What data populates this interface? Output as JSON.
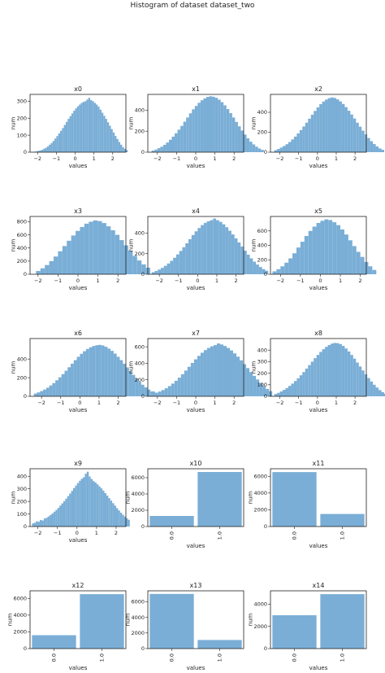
{
  "title": "Histogram of dataset dataset_two",
  "colors": {
    "bar": "#7aaed6",
    "axis": "#222222"
  },
  "chart_data": [
    {
      "type": "bar",
      "title": "x0",
      "xlabel": "values",
      "ylabel": "num",
      "xlim": [
        -2.4,
        2.7
      ],
      "ylim": [
        0,
        340
      ],
      "xticks": [
        -2,
        -1,
        0,
        1,
        2
      ],
      "yticks": [
        0,
        100,
        200,
        300
      ],
      "bins": {
        "start": -2.2,
        "width": 0.1,
        "values": [
          3,
          5,
          8,
          10,
          14,
          20,
          26,
          34,
          44,
          54,
          66,
          80,
          95,
          110,
          126,
          142,
          160,
          178,
          196,
          212,
          228,
          244,
          258,
          270,
          280,
          290,
          296,
          300,
          310,
          320,
          306,
          300,
          290,
          280,
          268,
          250,
          232,
          214,
          196,
          176,
          156,
          136,
          116,
          96,
          78,
          60,
          44,
          30,
          20,
          12
        ]
      }
    },
    {
      "type": "bar",
      "title": "x1",
      "xlabel": "values",
      "ylabel": "num",
      "xlim": [
        -2.5,
        2.5
      ],
      "ylim": [
        0,
        550
      ],
      "xticks": [
        -2,
        -1,
        0,
        1,
        2
      ],
      "yticks": [
        0,
        200,
        400
      ],
      "bins": {
        "start": -2.3,
        "width": 0.15,
        "values": [
          15,
          25,
          38,
          52,
          70,
          92,
          118,
          148,
          180,
          214,
          250,
          290,
          330,
          370,
          408,
          440,
          470,
          494,
          512,
          526,
          532,
          528,
          518,
          500,
          476,
          446,
          410,
          372,
          330,
          288,
          246,
          206,
          168,
          132,
          100,
          74,
          52,
          35,
          22
        ]
      }
    },
    {
      "type": "bar",
      "title": "x2",
      "xlabel": "values",
      "ylabel": "num",
      "xlim": [
        -2.5,
        2.6
      ],
      "ylim": [
        0,
        580
      ],
      "xticks": [
        -2,
        -1,
        0,
        1,
        2
      ],
      "yticks": [
        0,
        200,
        400
      ],
      "bins": {
        "start": -2.3,
        "width": 0.15,
        "values": [
          20,
          32,
          46,
          62,
          80,
          102,
          128,
          156,
          188,
          222,
          258,
          296,
          336,
          376,
          414,
          450,
          482,
          508,
          528,
          542,
          550,
          544,
          530,
          510,
          484,
          452,
          416,
          378,
          338,
          296,
          256,
          216,
          178,
          142,
          110,
          82,
          58,
          38,
          24
        ]
      }
    },
    {
      "type": "bar",
      "title": "x3",
      "xlabel": "values",
      "ylabel": "num",
      "xlim": [
        -2.4,
        2.4
      ],
      "ylim": [
        0,
        880
      ],
      "xticks": [
        -2,
        -1,
        0,
        1,
        2
      ],
      "yticks": [
        0,
        200,
        400,
        600,
        800
      ],
      "bins": {
        "start": -2.1,
        "width": 0.22,
        "values": [
          50,
          90,
          140,
          200,
          270,
          350,
          430,
          510,
          590,
          660,
          720,
          770,
          800,
          820,
          810,
          780,
          730,
          670,
          600,
          520,
          440,
          360,
          280,
          210,
          150,
          100
        ]
      }
    },
    {
      "type": "bar",
      "title": "x4",
      "xlabel": "values",
      "ylabel": "num",
      "xlim": [
        -2.6,
        2.4
      ],
      "ylim": [
        0,
        560
      ],
      "xticks": [
        -2,
        -1,
        0,
        1,
        2
      ],
      "yticks": [
        0,
        200,
        400
      ],
      "bins": {
        "start": -2.4,
        "width": 0.16,
        "values": [
          20,
          32,
          46,
          62,
          82,
          104,
          130,
          160,
          192,
          226,
          262,
          300,
          340,
          380,
          416,
          448,
          476,
          498,
          514,
          524,
          540,
          524,
          508,
          484,
          456,
          422,
          386,
          348,
          308,
          268,
          228,
          190,
          154,
          122,
          94,
          70,
          50,
          34
        ]
      }
    },
    {
      "type": "bar",
      "title": "x5",
      "xlabel": "values",
      "ylabel": "num",
      "xlim": [
        -2.5,
        2.3
      ],
      "ylim": [
        0,
        800
      ],
      "xticks": [
        -2,
        -1,
        0,
        1,
        2
      ],
      "yticks": [
        0,
        200,
        400,
        600
      ],
      "bins": {
        "start": -2.4,
        "width": 0.2,
        "values": [
          40,
          70,
          110,
          160,
          220,
          290,
          370,
          450,
          530,
          600,
          660,
          710,
          740,
          760,
          750,
          720,
          680,
          620,
          550,
          470,
          390,
          310,
          240,
          170,
          110,
          60
        ]
      }
    },
    {
      "type": "bar",
      "title": "x6",
      "xlabel": "values",
      "ylabel": "num",
      "xlim": [
        -2.6,
        2.4
      ],
      "ylim": [
        0,
        620
      ],
      "xticks": [
        -2,
        -1,
        0,
        1,
        2
      ],
      "yticks": [
        0,
        200,
        400
      ],
      "bins": {
        "start": -2.4,
        "width": 0.16,
        "values": [
          30,
          42,
          56,
          72,
          92,
          116,
          142,
          172,
          204,
          238,
          274,
          312,
          350,
          388,
          424,
          456,
          484,
          508,
          526,
          540,
          548,
          552,
          546,
          532,
          512,
          488,
          458,
          424,
          388,
          350,
          310,
          270,
          230,
          192,
          156,
          124,
          96,
          72,
          52,
          36
        ]
      }
    },
    {
      "type": "bar",
      "title": "x7",
      "xlabel": "values",
      "ylabel": "num",
      "xlim": [
        -2.5,
        2.5
      ],
      "ylim": [
        0,
        700
      ],
      "xticks": [
        -2,
        -1,
        0,
        1,
        2
      ],
      "yticks": [
        0,
        200,
        400,
        600
      ],
      "bins": {
        "start": -2.3,
        "width": 0.17,
        "values": [
          60,
          44,
          58,
          76,
          98,
          124,
          154,
          188,
          226,
          268,
          312,
          358,
          404,
          448,
          490,
          528,
          560,
          586,
          606,
          620,
          640,
          628,
          610,
          586,
          556,
          520,
          480,
          436,
          390,
          342,
          294,
          248,
          204,
          162,
          124,
          90,
          62
        ]
      }
    },
    {
      "type": "bar",
      "title": "x8",
      "xlabel": "values",
      "ylabel": "num",
      "xlim": [
        -2.5,
        2.6
      ],
      "ylim": [
        0,
        500
      ],
      "xticks": [
        -2,
        -1,
        0,
        1,
        2
      ],
      "yticks": [
        0,
        100,
        200,
        300,
        400
      ],
      "bins": {
        "start": -2.3,
        "width": 0.15,
        "values": [
          20,
          30,
          42,
          56,
          72,
          90,
          110,
          132,
          156,
          182,
          210,
          240,
          270,
          300,
          330,
          358,
          384,
          408,
          428,
          444,
          456,
          462,
          460,
          452,
          436,
          414,
          388,
          358,
          326,
          292,
          258,
          224,
          190,
          158,
          128,
          100,
          76,
          54,
          36,
          22
        ]
      }
    },
    {
      "type": "bar",
      "title": "x9",
      "xlabel": "values",
      "ylabel": "num",
      "xlim": [
        -2.4,
        2.5
      ],
      "ylim": [
        0,
        460
      ],
      "xticks": [
        -2,
        -1,
        0,
        1,
        2
      ],
      "yticks": [
        0,
        100,
        200,
        300,
        400
      ],
      "bins": {
        "start": -2.3,
        "width": 0.1,
        "values": [
          25,
          30,
          42,
          38,
          52,
          48,
          64,
          70,
          80,
          92,
          104,
          118,
          132,
          148,
          166,
          184,
          202,
          222,
          242,
          262,
          284,
          306,
          326,
          346,
          364,
          380,
          392,
          420,
          436,
          398,
          378,
          362,
          350,
          336,
          320,
          304,
          286,
          266,
          246,
          226,
          206,
          186,
          166,
          146,
          128,
          110,
          94,
          80,
          66,
          54
        ]
      }
    },
    {
      "type": "bar",
      "title": "x10",
      "xlabel": "values",
      "ylabel": "num",
      "categories": [
        "0.0",
        "1.0"
      ],
      "values": [
        1300,
        6700
      ],
      "ylim": [
        0,
        7100
      ],
      "yticks": [
        0,
        2000,
        4000,
        6000
      ]
    },
    {
      "type": "bar",
      "title": "x11",
      "xlabel": "values",
      "ylabel": "num",
      "categories": [
        "0.0",
        "1.0"
      ],
      "values": [
        6500,
        1500
      ],
      "ylim": [
        0,
        6900
      ],
      "yticks": [
        0,
        2000,
        4000,
        6000
      ]
    },
    {
      "type": "bar",
      "title": "x12",
      "xlabel": "values",
      "ylabel": "num",
      "categories": [
        "0.0",
        "1.0"
      ],
      "values": [
        1600,
        6500
      ],
      "ylim": [
        0,
        6900
      ],
      "yticks": [
        0,
        2000,
        4000,
        6000
      ]
    },
    {
      "type": "bar",
      "title": "x13",
      "xlabel": "values",
      "ylabel": "num",
      "categories": [
        "0.0",
        "1.0"
      ],
      "values": [
        7000,
        1100
      ],
      "ylim": [
        0,
        7400
      ],
      "yticks": [
        0,
        2000,
        4000,
        6000
      ]
    },
    {
      "type": "bar",
      "title": "x14",
      "xlabel": "values",
      "ylabel": "num",
      "categories": [
        "0.0",
        "1.0"
      ],
      "values": [
        3000,
        4900
      ],
      "ylim": [
        0,
        5200
      ],
      "yticks": [
        0,
        2000,
        4000
      ]
    }
  ]
}
